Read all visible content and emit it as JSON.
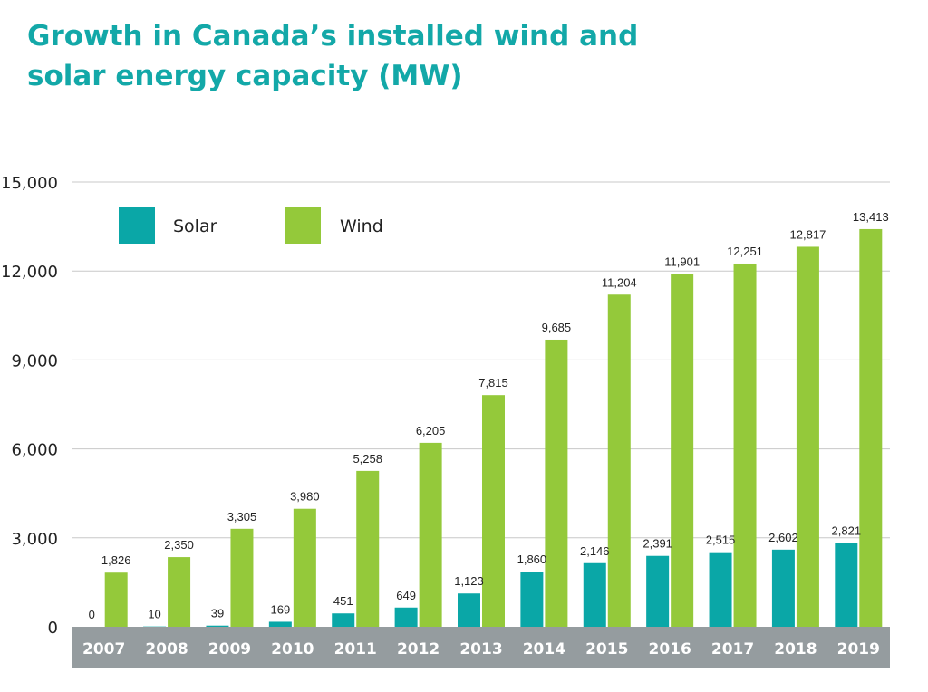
{
  "title_lines": [
    "Growth in Canada’s installed wind and",
    "solar energy capacity (MW)"
  ],
  "colors": {
    "title": "#13a8a8",
    "solar": "#0aa7a7",
    "wind": "#94c93a",
    "axis_band": "#959c9f",
    "grid": "#c8c8c8"
  },
  "chart_data": {
    "type": "bar",
    "title": "Growth in Canada’s installed wind and solar energy capacity (MW)",
    "categories": [
      "2007",
      "2008",
      "2009",
      "2010",
      "2011",
      "2012",
      "2013",
      "2014",
      "2015",
      "2016",
      "2017",
      "2018",
      "2019"
    ],
    "series": [
      {
        "name": "Solar",
        "values": [
          0,
          10,
          39,
          169,
          451,
          649,
          1123,
          1860,
          2146,
          2391,
          2515,
          2602,
          2821
        ],
        "labels": [
          "0",
          "10",
          "39",
          "169",
          "451",
          "649",
          "1,123",
          "1,860",
          "2,146",
          "2,391",
          "2,515",
          "2,602",
          "2,821"
        ]
      },
      {
        "name": "Wind",
        "values": [
          1826,
          2350,
          3305,
          3980,
          5258,
          6205,
          7815,
          9685,
          11204,
          11901,
          12251,
          12817,
          13413
        ],
        "labels": [
          "1,826",
          "2,350",
          "3,305",
          "3,980",
          "5,258",
          "6,205",
          "7,815",
          "9,685",
          "11,204",
          "11,901",
          "12,251",
          "12,817",
          "13,413"
        ]
      }
    ],
    "ylim": [
      0,
      15000
    ],
    "yticks": [
      0,
      3000,
      6000,
      9000,
      12000,
      15000
    ],
    "ytick_labels": [
      "0",
      "3,000",
      "6,000",
      "9,000",
      "12,000",
      "15,000"
    ],
    "grid": true,
    "legend": "top-left",
    "xlabel": "",
    "ylabel": ""
  }
}
